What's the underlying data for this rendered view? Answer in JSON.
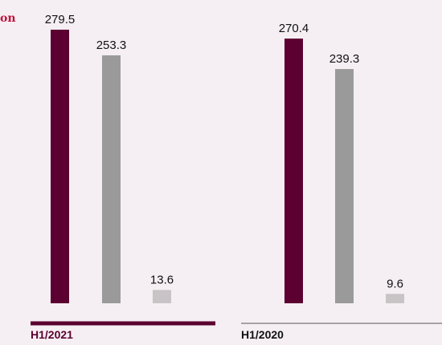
{
  "unit_fragment": "on",
  "colors": {
    "background": "#f5eff3",
    "accent": "#5b0030",
    "series": [
      "#5b0030",
      "#9a9a9a",
      "#c8c4c6"
    ],
    "label": "#111111",
    "period_label": "#5b0030",
    "divider_2021": "#5b0030",
    "divider_2020": "#555555"
  },
  "chart_data": {
    "type": "bar",
    "categories": [
      "H1/2021",
      "H1/2020"
    ],
    "series": [
      {
        "values": [
          279.5,
          270.4
        ]
      },
      {
        "values": [
          253.3,
          239.3
        ]
      },
      {
        "values": [
          13.6,
          9.6
        ]
      }
    ],
    "ylim": [
      0,
      279.5
    ],
    "grid": false,
    "legend": "none"
  }
}
